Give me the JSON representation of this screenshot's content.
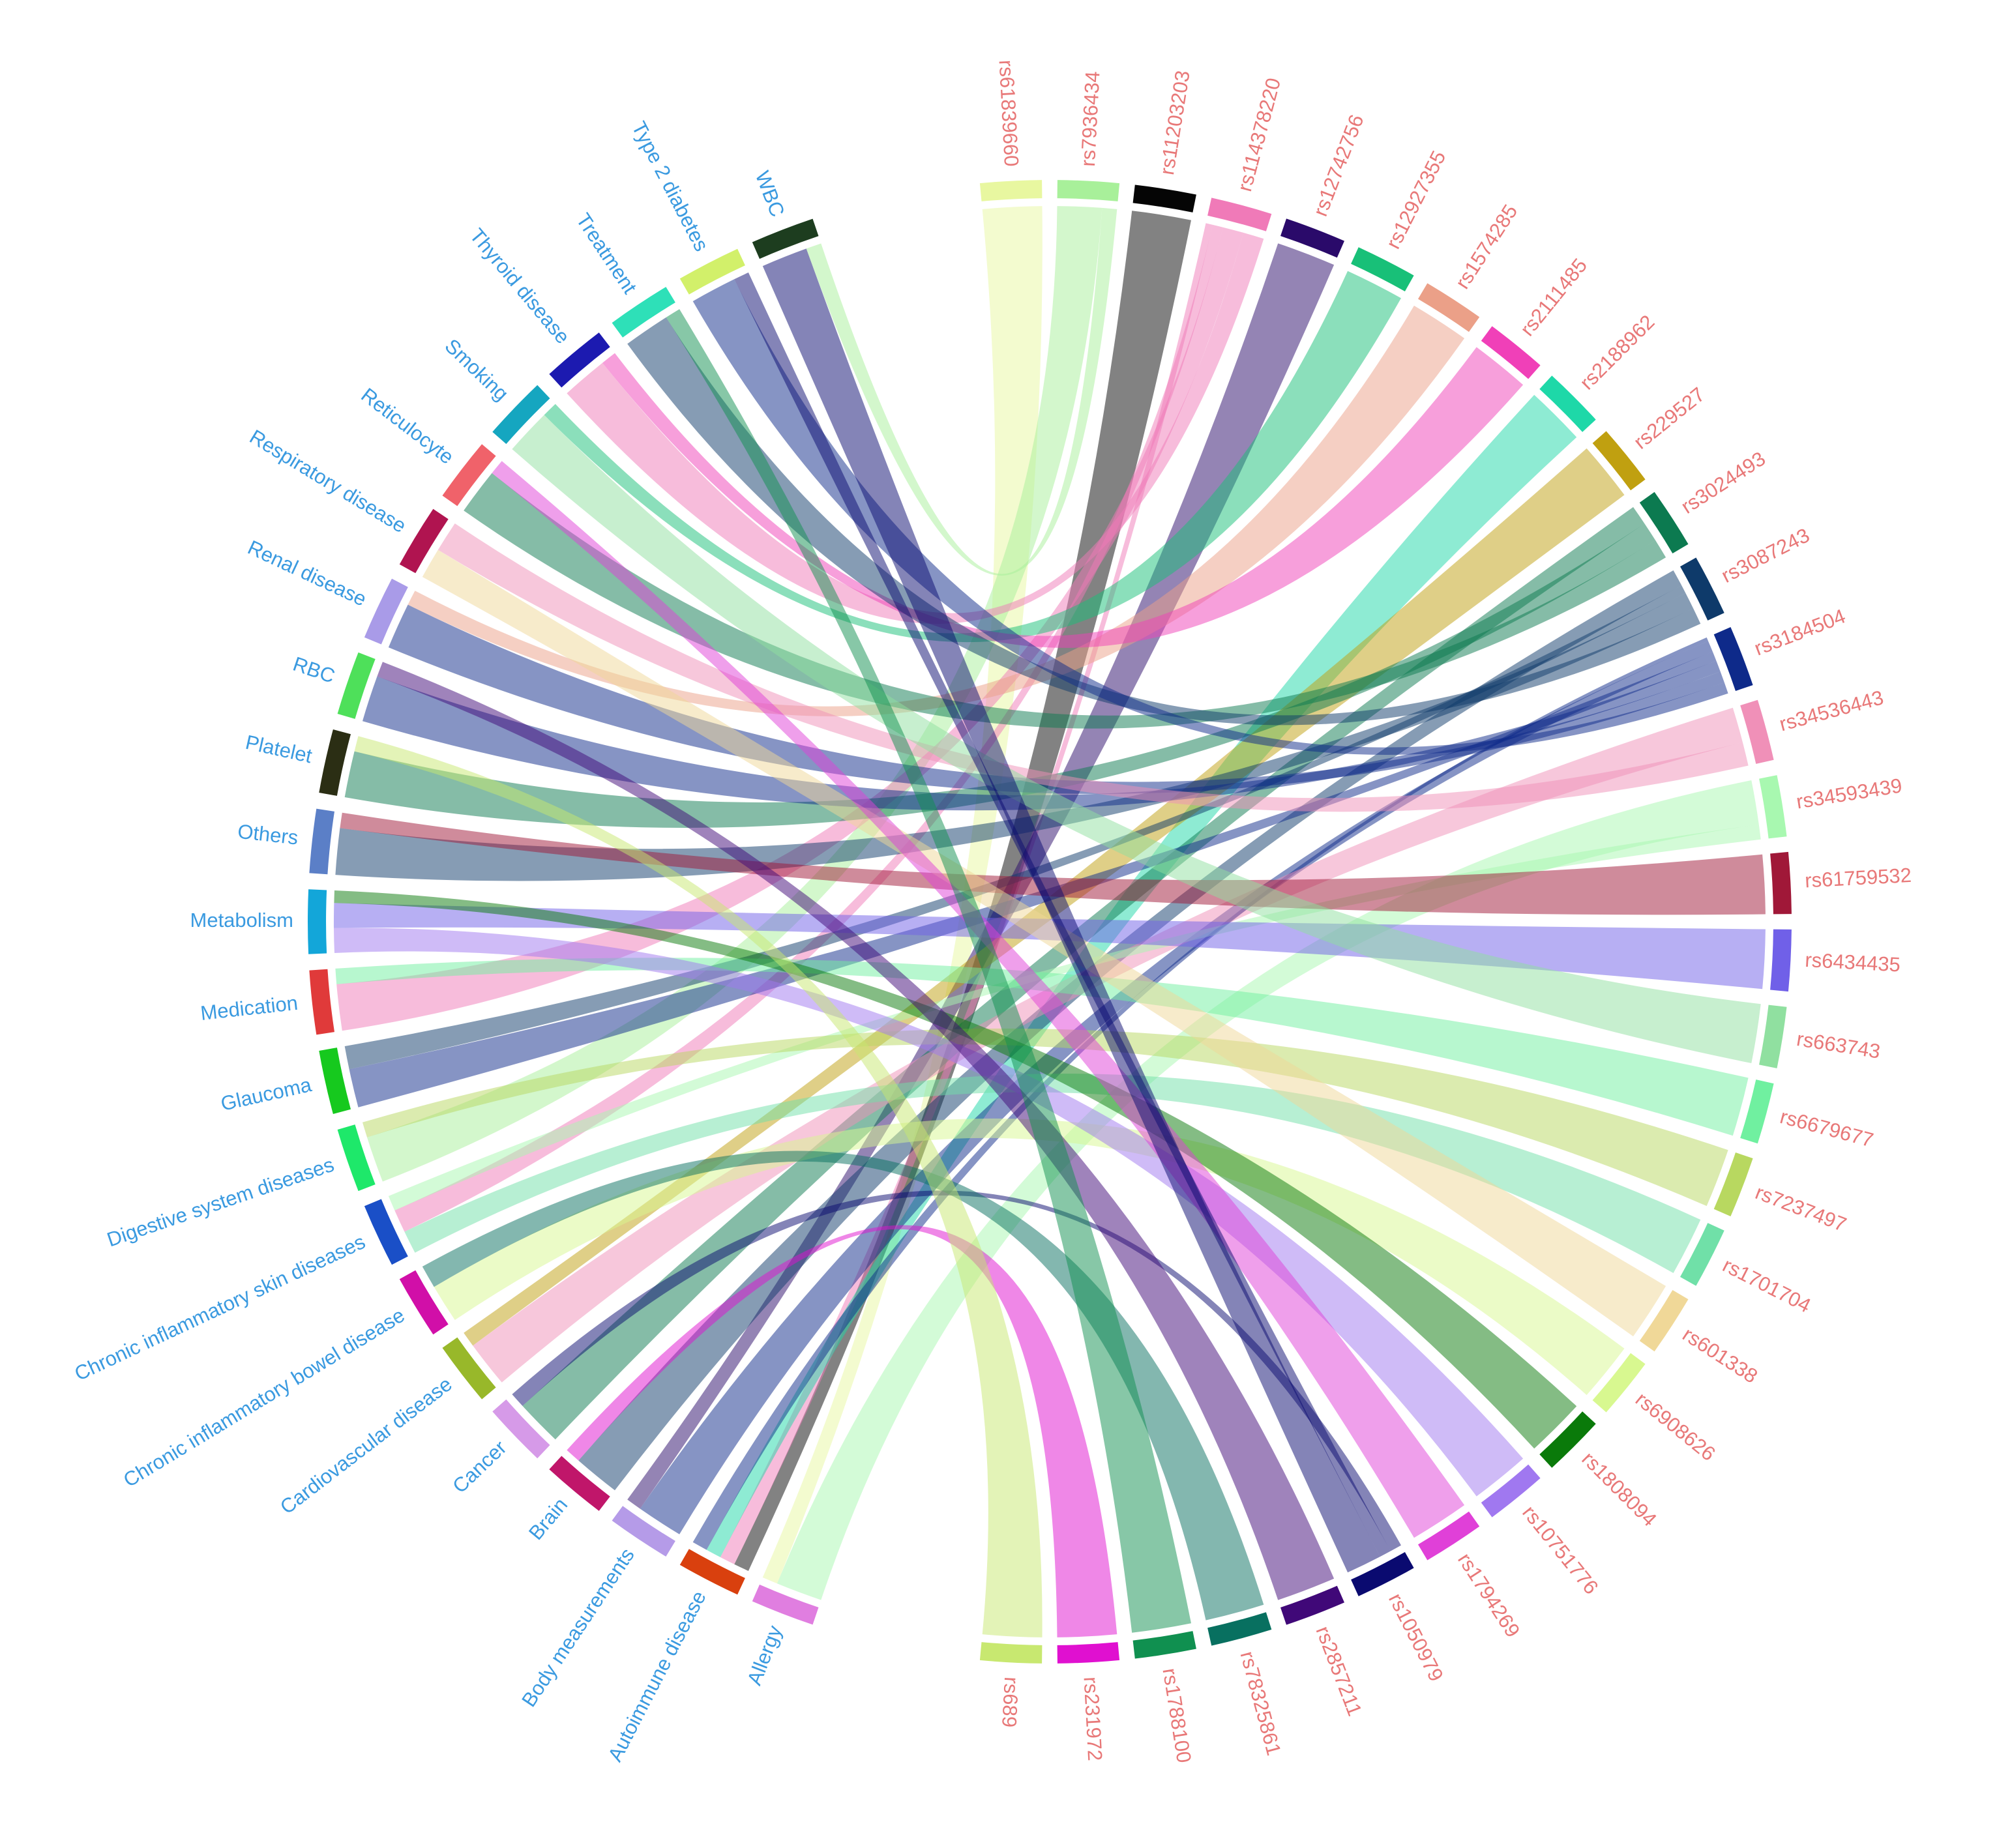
{
  "chart_data": {
    "type": "chord",
    "phenotypes": [
      {
        "name": "Allergy",
        "color": "#e07ee0"
      },
      {
        "name": "Autoimmune disease",
        "color": "#d9400e"
      },
      {
        "name": "Body measurements",
        "color": "#b59be8"
      },
      {
        "name": "Brain",
        "color": "#c0166a"
      },
      {
        "name": "Cancer",
        "color": "#d69ae8"
      },
      {
        "name": "Cardiovascular disease",
        "color": "#98b82a"
      },
      {
        "name": "Chronic inflammatory bowel disease",
        "color": "#d10fa8"
      },
      {
        "name": "Chronic inflammatory skin diseases",
        "color": "#1a4fc7"
      },
      {
        "name": "Digestive system diseases",
        "color": "#1ee86a"
      },
      {
        "name": "Glaucoma",
        "color": "#16c91e"
      },
      {
        "name": "Medication",
        "color": "#e03a3a"
      },
      {
        "name": "Metabolism",
        "color": "#13a6d9"
      },
      {
        "name": "Others",
        "color": "#5b7fc7"
      },
      {
        "name": "Platelet",
        "color": "#2b2e14"
      },
      {
        "name": "RBC",
        "color": "#4ee05a"
      },
      {
        "name": "Renal disease",
        "color": "#a99be8"
      },
      {
        "name": "Respiratory disease",
        "color": "#b01450"
      },
      {
        "name": "Reticulocyte",
        "color": "#f0626a"
      },
      {
        "name": "Smoking",
        "color": "#15a6c0"
      },
      {
        "name": "Thyroid disease",
        "color": "#1c1ab0"
      },
      {
        "name": "Treatment",
        "color": "#2ee0b8"
      },
      {
        "name": "Type 2 diabetes",
        "color": "#d2f06a"
      },
      {
        "name": "WBC",
        "color": "#1d3d1f"
      }
    ],
    "snps": [
      {
        "name": "rs61839660",
        "color": "#e8f7a0"
      },
      {
        "name": "rs7936434",
        "color": "#a8f09a"
      },
      {
        "name": "rs11203203",
        "color": "#050505"
      },
      {
        "name": "rs114378220",
        "color": "#f07ab8"
      },
      {
        "name": "rs12742756",
        "color": "#2a0a6a"
      },
      {
        "name": "rs12927355",
        "color": "#18c078"
      },
      {
        "name": "rs1574285",
        "color": "#eba088"
      },
      {
        "name": "rs2111485",
        "color": "#f040b8"
      },
      {
        "name": "rs2188962",
        "color": "#1ed8a8"
      },
      {
        "name": "rs229527",
        "color": "#c0a010"
      },
      {
        "name": "rs3024493",
        "color": "#0c7a50"
      },
      {
        "name": "rs3087243",
        "color": "#0e3a6a"
      },
      {
        "name": "rs3184504",
        "color": "#0e2a8a"
      },
      {
        "name": "rs34536443",
        "color": "#f090b8"
      },
      {
        "name": "rs34593439",
        "color": "#a8f8b0"
      },
      {
        "name": "rs61759532",
        "color": "#a01838"
      },
      {
        "name": "rs6434435",
        "color": "#7060e8"
      },
      {
        "name": "rs663743",
        "color": "#90e0a0"
      },
      {
        "name": "rs6679677",
        "color": "#70f0a0"
      },
      {
        "name": "rs7237497",
        "color": "#b8d860"
      },
      {
        "name": "rs1701704",
        "color": "#70e0a8"
      },
      {
        "name": "rs601338",
        "color": "#f0d898"
      },
      {
        "name": "rs6908626",
        "color": "#d8f890"
      },
      {
        "name": "rs1808094",
        "color": "#0a7a0a"
      },
      {
        "name": "rs10751776",
        "color": "#a078f0"
      },
      {
        "name": "rs1794269",
        "color": "#e040d8"
      },
      {
        "name": "rs1050979",
        "color": "#0a0a70"
      },
      {
        "name": "rs2857211",
        "color": "#400878"
      },
      {
        "name": "rs78325861",
        "color": "#087060"
      },
      {
        "name": "rs1788100",
        "color": "#109050"
      },
      {
        "name": "rs231972",
        "color": "#e010d0"
      },
      {
        "name": "rs689",
        "color": "#c8e870"
      }
    ],
    "links": [
      {
        "source": "Allergy",
        "target": "rs34593439",
        "value": 6
      },
      {
        "source": "Allergy",
        "target": "rs61839660",
        "value": 2
      },
      {
        "source": "Autoimmune disease",
        "target": "rs11203203",
        "value": 2
      },
      {
        "source": "Autoimmune disease",
        "target": "rs114378220",
        "value": 2
      },
      {
        "source": "Autoimmune disease",
        "target": "rs2188962",
        "value": 2
      },
      {
        "source": "Autoimmune disease",
        "target": "rs3184504",
        "value": 2
      },
      {
        "source": "Body measurements",
        "target": "rs3184504",
        "value": 6
      },
      {
        "source": "Body measurements",
        "target": "rs12742756",
        "value": 2
      },
      {
        "source": "Brain",
        "target": "rs3087243",
        "value": 6
      },
      {
        "source": "Brain",
        "target": "rs231972",
        "value": 2
      },
      {
        "source": "Cancer",
        "target": "rs3024493",
        "value": 6
      },
      {
        "source": "Cancer",
        "target": "rs1050979",
        "value": 2
      },
      {
        "source": "Cardiovascular disease",
        "target": "rs34536443",
        "value": 6
      },
      {
        "source": "Cardiovascular disease",
        "target": "rs229527",
        "value": 2
      },
      {
        "source": "Chronic inflammatory bowel disease",
        "target": "rs6908626",
        "value": 5
      },
      {
        "source": "Chronic inflammatory bowel disease",
        "target": "rs78325861",
        "value": 3
      },
      {
        "source": "Chronic inflammatory skin diseases",
        "target": "rs1701704",
        "value": 3
      },
      {
        "source": "Chronic inflammatory skin diseases",
        "target": "rs114378220",
        "value": 3
      },
      {
        "source": "Chronic inflammatory skin diseases",
        "target": "rs34593439",
        "value": 2
      },
      {
        "source": "Digestive system diseases",
        "target": "rs7936434",
        "value": 6
      },
      {
        "source": "Digestive system diseases",
        "target": "rs7237497",
        "value": 2
      },
      {
        "source": "Glaucoma",
        "target": "rs3184504",
        "value": 5
      },
      {
        "source": "Glaucoma",
        "target": "rs3087243",
        "value": 3
      },
      {
        "source": "Medication",
        "target": "rs114378220",
        "value": 6
      },
      {
        "source": "Medication",
        "target": "rs6679677",
        "value": 2
      },
      {
        "source": "Metabolism",
        "target": "rs10751776",
        "value": 4
      },
      {
        "source": "Metabolism",
        "target": "rs6434435",
        "value": 4
      },
      {
        "source": "Metabolism",
        "target": "rs1808094",
        "value": 2
      },
      {
        "source": "Others",
        "target": "rs3087243",
        "value": 6
      },
      {
        "source": "Others",
        "target": "rs61759532",
        "value": 2
      },
      {
        "source": "Platelet",
        "target": "rs3024493",
        "value": 6
      },
      {
        "source": "Platelet",
        "target": "rs689",
        "value": 2
      },
      {
        "source": "RBC",
        "target": "rs3184504",
        "value": 6
      },
      {
        "source": "RBC",
        "target": "rs2857211",
        "value": 2
      },
      {
        "source": "Renal disease",
        "target": "rs3184504",
        "value": 6
      },
      {
        "source": "Renal disease",
        "target": "rs1574285",
        "value": 2
      },
      {
        "source": "Respiratory disease",
        "target": "rs601338",
        "value": 4
      },
      {
        "source": "Respiratory disease",
        "target": "rs34536443",
        "value": 4
      },
      {
        "source": "Reticulocyte",
        "target": "rs3024493",
        "value": 6
      },
      {
        "source": "Reticulocyte",
        "target": "rs1794269",
        "value": 2
      },
      {
        "source": "Smoking",
        "target": "rs663743",
        "value": 6
      },
      {
        "source": "Smoking",
        "target": "rs12927355",
        "value": 2
      },
      {
        "source": "Thyroid disease",
        "target": "rs114378220",
        "value": 6
      },
      {
        "source": "Thyroid disease",
        "target": "rs2111485",
        "value": 2
      },
      {
        "source": "Treatment",
        "target": "rs3087243",
        "value": 6
      },
      {
        "source": "Treatment",
        "target": "rs1788100",
        "value": 2
      },
      {
        "source": "Type 2 diabetes",
        "target": "rs3184504",
        "value": 6
      },
      {
        "source": "Type 2 diabetes",
        "target": "rs1050979",
        "value": 2
      },
      {
        "source": "WBC",
        "target": "rs1050979",
        "value": 6
      },
      {
        "source": "WBC",
        "target": "rs7936434",
        "value": 2
      }
    ]
  }
}
